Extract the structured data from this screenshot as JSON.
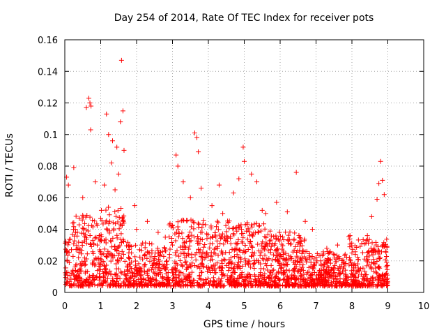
{
  "chart_data": {
    "type": "scatter",
    "title": "Day 254 of 2014, Rate Of TEC Index for receiver pots",
    "xlabel": "GPS time / hours",
    "ylabel": "ROTI / TECUs",
    "xlim": [
      0,
      10
    ],
    "ylim": [
      0,
      0.16
    ],
    "xticks": [
      0,
      1,
      2,
      3,
      4,
      5,
      6,
      7,
      8,
      9,
      10
    ],
    "yticks": [
      0,
      0.02,
      0.04,
      0.06,
      0.08,
      0.1,
      0.12,
      0.14,
      0.16
    ],
    "ytick_labels": [
      "0",
      "0.02",
      "0.04",
      "0.06",
      "0.08",
      "0.1",
      "0.12",
      "0.14",
      "0.16"
    ],
    "grid": true,
    "marker": "+",
    "color": "#ff0000",
    "data_range_hours": [
      0,
      9
    ],
    "series": [
      {
        "name": "pots",
        "x": [
          0.6,
          0.67,
          0.7,
          0.73,
          1.58,
          1.55,
          1.62,
          0.72,
          1.16,
          1.22,
          1.33,
          1.45,
          0.05,
          0.1,
          0.25,
          0.5,
          0.85,
          1.1,
          1.3,
          1.4,
          1.5,
          1.65,
          1.95,
          2.3,
          2.6,
          2.8,
          3.1,
          3.15,
          3.3,
          3.5,
          3.62,
          3.68,
          3.72,
          3.8,
          4.1,
          4.3,
          4.4,
          4.7,
          4.85,
          4.97,
          5.0,
          5.2,
          5.35,
          5.6,
          5.9,
          6.2,
          6.45,
          6.7,
          6.9,
          7.3,
          7.6,
          8.0,
          8.4,
          8.55,
          8.7,
          8.75,
          8.8,
          8.85,
          8.9,
          3.0,
          5.5,
          2.0
        ],
        "y": [
          0.117,
          0.123,
          0.12,
          0.118,
          0.147,
          0.108,
          0.115,
          0.103,
          0.113,
          0.1,
          0.096,
          0.092,
          0.073,
          0.068,
          0.079,
          0.06,
          0.07,
          0.068,
          0.082,
          0.065,
          0.075,
          0.09,
          0.055,
          0.045,
          0.038,
          0.035,
          0.087,
          0.08,
          0.07,
          0.06,
          0.101,
          0.098,
          0.089,
          0.066,
          0.055,
          0.068,
          0.05,
          0.063,
          0.072,
          0.092,
          0.083,
          0.075,
          0.07,
          0.05,
          0.057,
          0.051,
          0.076,
          0.045,
          0.04,
          0.028,
          0.03,
          0.025,
          0.033,
          0.048,
          0.059,
          0.069,
          0.083,
          0.071,
          0.062,
          0.03,
          0.052,
          0.04
        ]
      }
    ]
  }
}
